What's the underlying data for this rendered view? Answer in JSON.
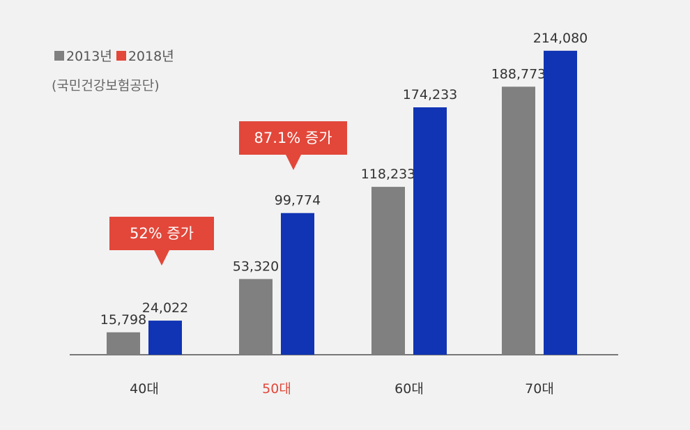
{
  "chart_data": {
    "type": "bar",
    "categories": [
      "40대",
      "50대",
      "60대",
      "70대"
    ],
    "series": [
      {
        "name": "2013년",
        "color": "#808080",
        "values": [
          15798,
          53320,
          118233,
          188773
        ],
        "labels": [
          "15,798",
          "53,320",
          "118,233",
          "188,773"
        ]
      },
      {
        "name": "2018년",
        "color": "#1034b4",
        "values": [
          24022,
          99774,
          174233,
          214080
        ],
        "labels": [
          "24,022",
          "99,774",
          "174,233",
          "214,080"
        ]
      }
    ],
    "highlight_category": "50대",
    "highlight_color": "#e2473a",
    "source": "(국민건강보험공단)",
    "annotations": [
      {
        "category": "40대",
        "text": "52% 증가"
      },
      {
        "category": "50대",
        "text": "87.1% 증가"
      }
    ],
    "ylim": [
      0,
      240000
    ],
    "grid": false,
    "legend": "top-left"
  }
}
